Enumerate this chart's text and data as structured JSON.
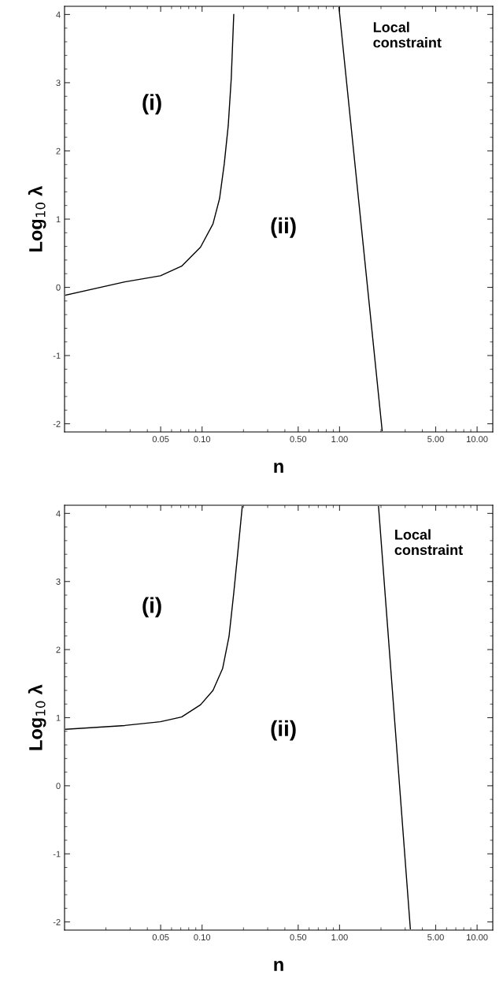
{
  "chart_data": [
    {
      "type": "line",
      "xlabel": "n",
      "ylabel": "Log$_{10}$ λ",
      "log": "x",
      "xlim": [
        0.01,
        13
      ],
      "ylim": [
        -2.12,
        4.12
      ],
      "xticks": [
        {
          "value": 0.05,
          "label": "0.05"
        },
        {
          "value": 0.1,
          "label": "0.10"
        },
        {
          "value": 0.5,
          "label": "0.50"
        },
        {
          "value": 1,
          "label": "1.00"
        },
        {
          "value": 5,
          "label": "5.00"
        },
        {
          "value": 10,
          "label": "10.00"
        }
      ],
      "yticks": [
        -2,
        -1,
        0,
        1,
        2,
        3,
        4
      ],
      "grid": false,
      "legend": false,
      "marker": "none",
      "line_style": "solid",
      "series": [
        {
          "color": "#000000",
          "x": [
            0.0102,
            0.0274,
            0.0498,
            0.071,
            0.0975,
            0.12,
            0.134,
            0.145,
            0.155,
            0.163,
            0.17
          ],
          "values": [
            -0.115,
            0.08,
            0.17,
            0.31,
            0.59,
            0.93,
            1.3,
            1.81,
            2.37,
            3.06,
            4.0
          ]
        },
        {
          "color": "#000000",
          "x": [
            0.99,
            2.04
          ],
          "values": [
            4.1,
            -2.1
          ]
        }
      ],
      "annotations": [
        "(i)",
        "(ii)",
        "Local\nconstraint"
      ]
    },
    {
      "type": "line",
      "xlabel": "n",
      "ylabel": "Log$_{10}$ λ",
      "log": "x",
      "xlim": [
        0.01,
        13
      ],
      "ylim": [
        -2.12,
        4.12
      ],
      "xticks": [
        {
          "value": 0.05,
          "label": "0.05"
        },
        {
          "value": 0.1,
          "label": "0.10"
        },
        {
          "value": 0.5,
          "label": "0.50"
        },
        {
          "value": 1,
          "label": "1.00"
        },
        {
          "value": 5,
          "label": "5.00"
        },
        {
          "value": 10,
          "label": "10.00"
        }
      ],
      "yticks": [
        -2,
        -1,
        0,
        1,
        2,
        3,
        4
      ],
      "grid": false,
      "legend": false,
      "marker": "none",
      "line_style": "solid",
      "series": [
        {
          "color": "#000000",
          "x": [
            0.0102,
            0.0274,
            0.0498,
            0.071,
            0.0975,
            0.12,
            0.141,
            0.157,
            0.17,
            0.182,
            0.196
          ],
          "values": [
            0.83,
            0.885,
            0.94,
            1.01,
            1.19,
            1.4,
            1.72,
            2.19,
            2.83,
            3.43,
            4.1
          ]
        },
        {
          "color": "#000000",
          "x": [
            1.92,
            3.27
          ],
          "values": [
            4.1,
            -2.1
          ]
        }
      ],
      "annotations": [
        "(i)",
        "(ii)",
        "Local\nconstraint"
      ]
    }
  ]
}
